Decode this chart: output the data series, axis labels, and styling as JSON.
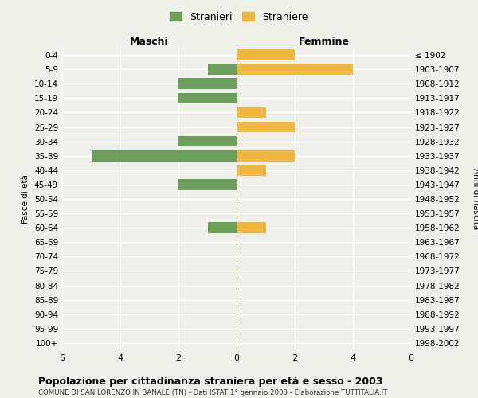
{
  "age_groups": [
    "0-4",
    "5-9",
    "10-14",
    "15-19",
    "20-24",
    "25-29",
    "30-34",
    "35-39",
    "40-44",
    "45-49",
    "50-54",
    "55-59",
    "60-64",
    "65-69",
    "70-74",
    "75-79",
    "80-84",
    "85-89",
    "90-94",
    "95-99",
    "100+"
  ],
  "birth_years": [
    "1998-2002",
    "1993-1997",
    "1988-1992",
    "1983-1987",
    "1978-1982",
    "1973-1977",
    "1968-1972",
    "1963-1967",
    "1958-1962",
    "1953-1957",
    "1948-1952",
    "1943-1947",
    "1938-1942",
    "1933-1937",
    "1928-1932",
    "1923-1927",
    "1918-1922",
    "1913-1917",
    "1908-1912",
    "1903-1907",
    "≤ 1902"
  ],
  "maschi": [
    0,
    1,
    2,
    2,
    0,
    0,
    2,
    5,
    0,
    2,
    0,
    0,
    1,
    0,
    0,
    0,
    0,
    0,
    0,
    0,
    0
  ],
  "femmine": [
    2,
    4,
    0,
    0,
    1,
    2,
    0,
    2,
    1,
    0,
    0,
    0,
    1,
    0,
    0,
    0,
    0,
    0,
    0,
    0,
    0
  ],
  "color_maschi": "#6a9e5a",
  "color_femmine": "#f0b840",
  "title": "Popolazione per cittadinanza straniera per età e sesso - 2003",
  "subtitle": "COMUNE DI SAN LORENZO IN BANALE (TN) - Dati ISTAT 1° gennaio 2003 - Elaborazione TUTTITALIA.IT",
  "ylabel_left": "Fasce di età",
  "ylabel_right": "Anni di nascita",
  "xlabel_maschi": "Maschi",
  "xlabel_femmine": "Femmine",
  "legend_stranieri": "Stranieri",
  "legend_straniere": "Straniere",
  "xlim": 6,
  "background_color": "#f0f0eb",
  "grid_color": "#ffffff",
  "bar_height": 0.75
}
